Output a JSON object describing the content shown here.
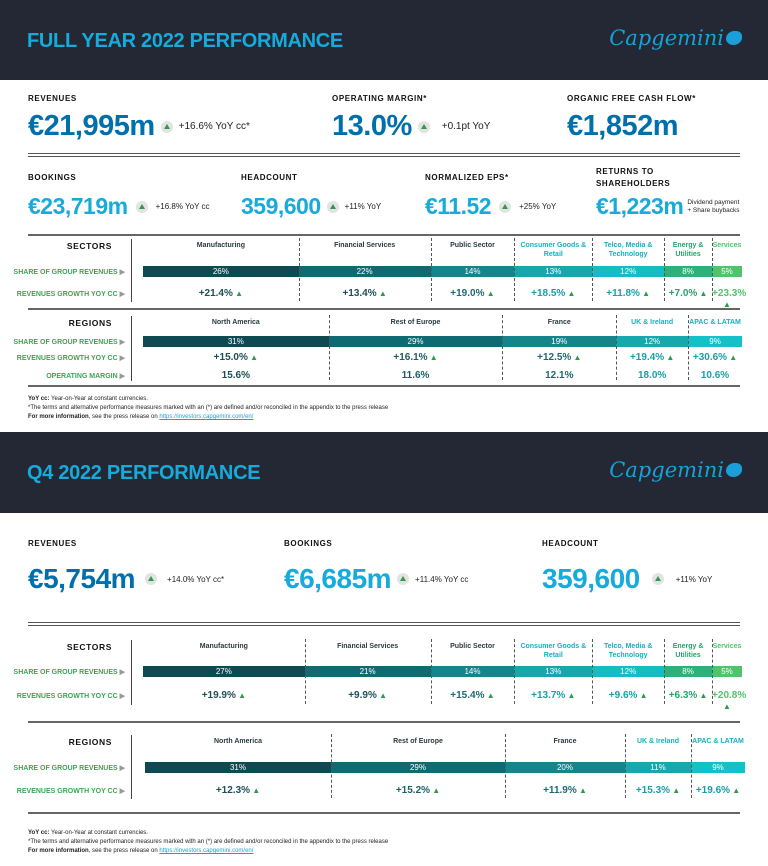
{
  "colors": {
    "header_bg": "#242834",
    "title": "#17abdb",
    "primary_value": "#0070ad",
    "secondary_value": "#17abdb",
    "row_label": "#3aa655",
    "up_arrow": "#2f9a4f"
  },
  "logo_text": "Capgemini",
  "fy": {
    "title": "FULL YEAR 2022 PERFORMANCE",
    "kpis_row1": [
      {
        "label": "REVENUES",
        "value": "€21,995m",
        "change": "+16.6% YoY cc*",
        "arrow": "up-arrow-icon"
      },
      {
        "label": "OPERATING MARGIN*",
        "value": "13.0%",
        "change": "+0.1pt YoY",
        "arrow": "up-arrow-icon"
      },
      {
        "label": "ORGANIC FREE CASH FLOW*",
        "value": "€1,852m",
        "change": ""
      }
    ],
    "kpis_row2": [
      {
        "label": "BOOKINGS",
        "value": "€23,719m",
        "change": "+16.8% YoY cc",
        "arrow": "up-arrow-icon"
      },
      {
        "label": "HEADCOUNT",
        "value": "359,600",
        "change": "+11% YoY",
        "arrow": "up-arrow-icon"
      },
      {
        "label": "NORMALIZED EPS*",
        "value": "€11.52",
        "change": "+25% YoY",
        "arrow": "up-arrow-icon"
      },
      {
        "label": "RETURNS TO SHAREHOLDERS",
        "value": "€1,223m",
        "change": "Dividend payment + Share buybacks"
      }
    ],
    "sectors": {
      "heading": "SECTORS",
      "row_labels": [
        "SHARE OF GROUP REVENUES",
        "REVENUES GROWTH YOY CC"
      ],
      "columns": [
        {
          "name": "Manufacturing",
          "share": "26%",
          "share_value": 26,
          "growth": "+21.4%"
        },
        {
          "name": "Financial Services",
          "share": "22%",
          "share_value": 22,
          "growth": "+13.4%"
        },
        {
          "name": "Public Sector",
          "share": "14%",
          "share_value": 14,
          "growth": "+19.0%"
        },
        {
          "name": "Consumer Goods & Retail",
          "share": "13%",
          "share_value": 13,
          "growth": "+18.5%"
        },
        {
          "name": "Telco, Media & Technology",
          "share": "12%",
          "share_value": 12,
          "growth": "+11.8%"
        },
        {
          "name": "Energy & Utilities",
          "share": "8%",
          "share_value": 8,
          "growth": "+7.0%"
        },
        {
          "name": "Services",
          "share": "5%",
          "share_value": 5,
          "growth": "+23.3%"
        }
      ]
    },
    "regions": {
      "heading": "REGIONS",
      "row_labels": [
        "SHARE OF GROUP REVENUES",
        "REVENUES GROWTH YOY CC",
        "OPERATING MARGIN"
      ],
      "columns": [
        {
          "name": "North America",
          "share": "31%",
          "share_value": 31,
          "growth": "+15.0%",
          "margin": "15.6%"
        },
        {
          "name": "Rest of Europe",
          "share": "29%",
          "share_value": 29,
          "growth": "+16.1%",
          "margin": "11.6%"
        },
        {
          "name": "France",
          "share": "19%",
          "share_value": 19,
          "growth": "+12.5%",
          "margin": "12.1%"
        },
        {
          "name": "UK & Ireland",
          "share": "12%",
          "share_value": 12,
          "growth": "+19.4%",
          "margin": "18.0%"
        },
        {
          "name": "APAC & LATAM",
          "share": "9%",
          "share_value": 9,
          "growth": "+30.6%",
          "margin": "10.6%"
        }
      ]
    },
    "footnotes": {
      "yoy_label": "YoY cc:",
      "yoy_text": " Year-on-Year at constant currencies.",
      "terms": "*The terms and alternative performance measures marked with an (*) are defined and/or reconciled in the appendix to the press release",
      "more_label": "For more information",
      "more_text": ", see the press release on ",
      "link": "https://investors.capgemini.com/en/"
    }
  },
  "q4": {
    "title": "Q4 2022 PERFORMANCE",
    "kpis": [
      {
        "label": "REVENUES",
        "value": "€5,754m",
        "change": "+14.0% YoY cc*",
        "arrow": "up-arrow-icon"
      },
      {
        "label": "BOOKINGS",
        "value": "€6,685m",
        "change": "+11.4% YoY cc",
        "arrow": "up-arrow-icon"
      },
      {
        "label": "HEADCOUNT",
        "value": "359,600",
        "change": "+11% YoY",
        "arrow": "up-arrow-icon"
      }
    ],
    "sectors": {
      "heading": "SECTORS",
      "row_labels": [
        "SHARE OF GROUP REVENUES",
        "REVENUES GROWTH YOY CC"
      ],
      "columns": [
        {
          "name": "Manufacturing",
          "share": "27%",
          "share_value": 27,
          "growth": "+19.9%"
        },
        {
          "name": "Financial Services",
          "share": "21%",
          "share_value": 21,
          "growth": "+9.9%"
        },
        {
          "name": "Public Sector",
          "share": "14%",
          "share_value": 14,
          "growth": "+15.4%"
        },
        {
          "name": "Consumer Goods & Retail",
          "share": "13%",
          "share_value": 13,
          "growth": "+13.7%"
        },
        {
          "name": "Telco, Media & Technology",
          "share": "12%",
          "share_value": 12,
          "growth": "+9.6%"
        },
        {
          "name": "Energy & Utilities",
          "share": "8%",
          "share_value": 8,
          "growth": "+6.3%"
        },
        {
          "name": "Services",
          "share": "5%",
          "share_value": 5,
          "growth": "+20.8%"
        }
      ]
    },
    "regions": {
      "heading": "REGIONS",
      "row_labels": [
        "SHARE OF GROUP REVENUES",
        "REVENUES GROWTH YOY CC"
      ],
      "columns": [
        {
          "name": "North America",
          "share": "31%",
          "share_value": 31,
          "growth": "+12.3%"
        },
        {
          "name": "Rest of Europe",
          "share": "29%",
          "share_value": 29,
          "growth": "+15.2%"
        },
        {
          "name": "France",
          "share": "20%",
          "share_value": 20,
          "growth": "+11.9%"
        },
        {
          "name": "UK & Ireland",
          "share": "11%",
          "share_value": 11,
          "growth": "+15.3%"
        },
        {
          "name": "APAC & LATAM",
          "share": "9%",
          "share_value": 9,
          "growth": "+19.6%"
        }
      ]
    },
    "footnotes": {
      "yoy_label": "YoY cc:",
      "yoy_text": " Year-on-Year at constant currencies.",
      "terms": "*The terms and alternative performance measures marked with an (*) are defined and/or reconciled in the appendix to the press release",
      "more_label": "For more information",
      "more_text": ", see the press release on ",
      "link": "https://investors.capgemini.com/en/"
    }
  }
}
